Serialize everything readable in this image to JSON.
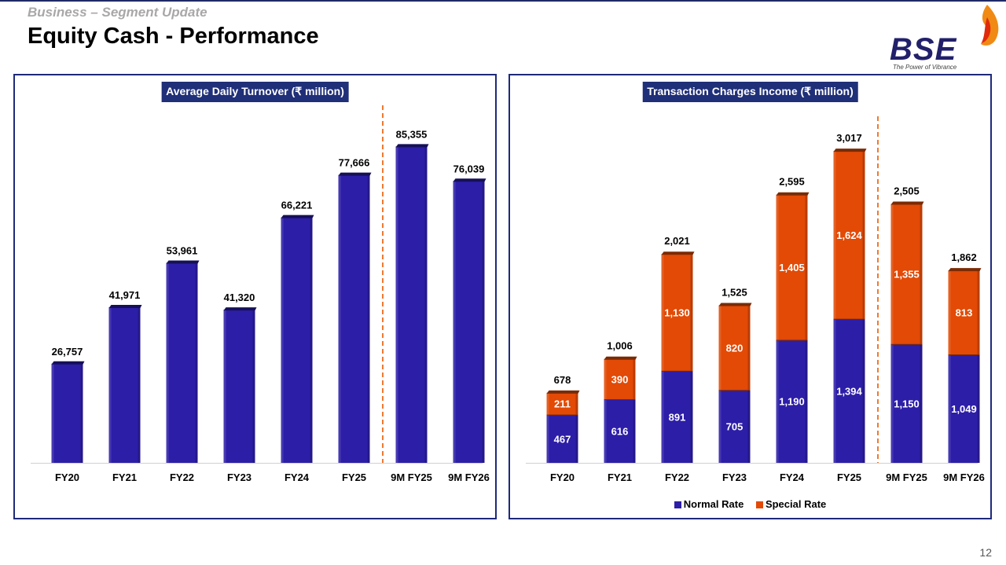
{
  "header": {
    "subtitle": "Business – Segment Update",
    "title": "Equity Cash - Performance",
    "page_number": "12"
  },
  "logo": {
    "text": "BSE",
    "tagline": "The Power of Vibrance"
  },
  "colors": {
    "bar_blue": "#2d1ea8",
    "bar_blue_top": "#161058",
    "bar_orange": "#e24a06",
    "bar_orange_top": "#7a2a05",
    "title_bg": "#1f2f78",
    "frame": "#1e2a7a",
    "divider": "#f07a30"
  },
  "legend": {
    "normal": "Normal Rate",
    "special": "Special Rate"
  },
  "chart_data": [
    {
      "type": "bar",
      "title": "Average Daily Turnover (₹ million)",
      "categories": [
        "FY20",
        "FY21",
        "FY22",
        "FY23",
        "FY24",
        "FY25",
        "9M FY25",
        "9M FY26"
      ],
      "values": [
        26757,
        41971,
        53961,
        41320,
        66221,
        77666,
        85355,
        76039
      ],
      "value_labels": [
        "26,757",
        "41,971",
        "53,961",
        "41,320",
        "66,221",
        "77,666",
        "85,355",
        "76,039"
      ],
      "ylim": [
        0,
        92000
      ],
      "divider_after_index": 5,
      "xlabel": "",
      "ylabel": ""
    },
    {
      "type": "bar",
      "stacked": true,
      "title": "Transaction Charges Income (₹ million)",
      "categories": [
        "FY20",
        "FY21",
        "FY22",
        "FY23",
        "FY24",
        "FY25",
        "9M FY25",
        "9M FY26"
      ],
      "series": [
        {
          "name": "Normal Rate",
          "values": [
            467,
            616,
            891,
            705,
            1190,
            1394,
            1150,
            1049
          ],
          "labels": [
            "467",
            "616",
            "891",
            "705",
            "1,190",
            "1,394",
            "1,150",
            "1,049"
          ]
        },
        {
          "name": "Special Rate",
          "values": [
            211,
            390,
            1130,
            820,
            1405,
            1624,
            1355,
            813
          ],
          "labels": [
            "211",
            "390",
            "1,130",
            "820",
            "1,405",
            "1,624",
            "1,355",
            "813"
          ]
        }
      ],
      "totals": [
        678,
        1006,
        2021,
        1525,
        2595,
        3017,
        2505,
        1862
      ],
      "total_labels": [
        "678",
        "1,006",
        "2,021",
        "1,525",
        "2,595",
        "3,017",
        "2,505",
        "1,862"
      ],
      "ylim": [
        0,
        3300
      ],
      "divider_after_index": 5,
      "xlabel": "",
      "ylabel": ""
    }
  ]
}
